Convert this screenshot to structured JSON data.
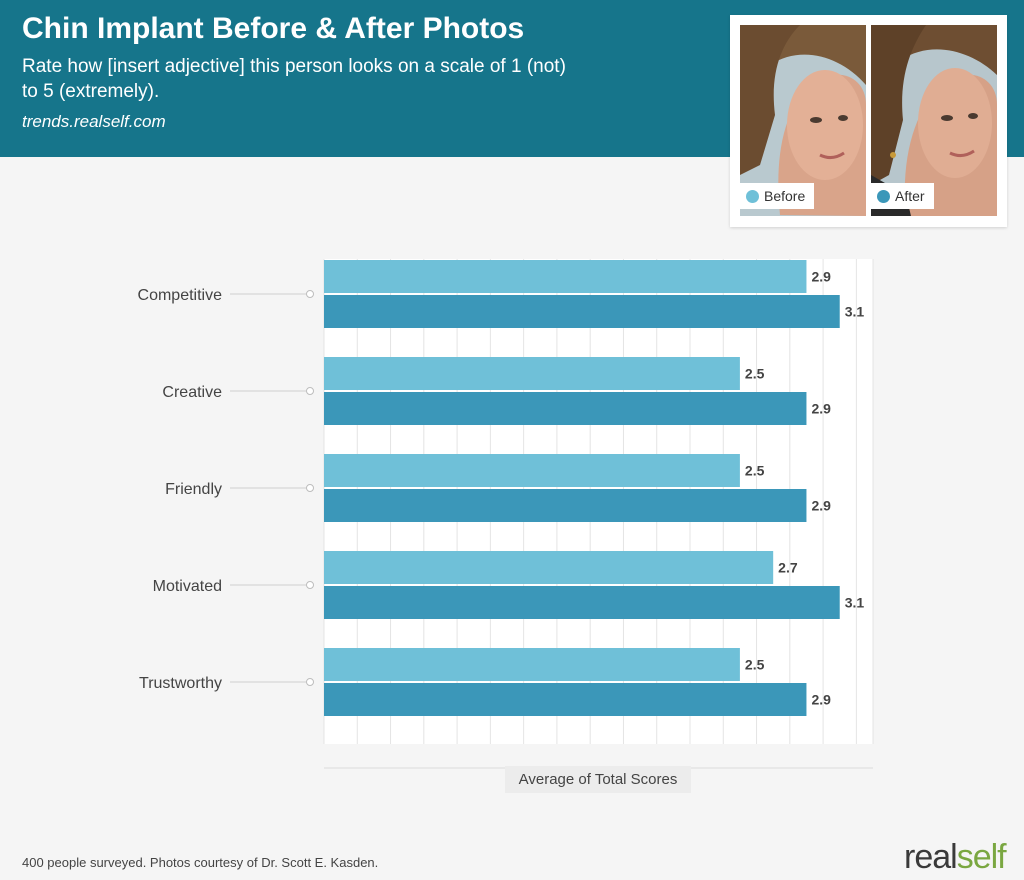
{
  "header": {
    "title": "Chin Implant Before & After Photos",
    "subtitle": "Rate how [insert adjective] this person looks on a scale of 1 (not) to 5 (extremely).",
    "source": "trends.realself.com"
  },
  "photos": {
    "before_label": "Before",
    "after_label": "After"
  },
  "colors": {
    "before": "#6fc0d8",
    "after": "#3b97b9",
    "header": "#16758b"
  },
  "chart_data": {
    "type": "bar",
    "orientation": "horizontal",
    "categories": [
      "Competitive",
      "Creative",
      "Friendly",
      "Motivated",
      "Trustworthy"
    ],
    "series": [
      {
        "name": "Before",
        "values": [
          2.9,
          2.5,
          2.5,
          2.7,
          2.5
        ]
      },
      {
        "name": "After",
        "values": [
          3.1,
          2.9,
          2.9,
          3.1,
          2.9
        ]
      }
    ],
    "xlabel": "Average of Total Scores",
    "xlim": [
      0,
      3.3
    ],
    "grid": true,
    "legend": "top-right"
  },
  "footer": {
    "note": "400 people surveyed. Photos courtesy of Dr. Scott E. Kasden.",
    "logo_real": "real",
    "logo_self": "self"
  }
}
